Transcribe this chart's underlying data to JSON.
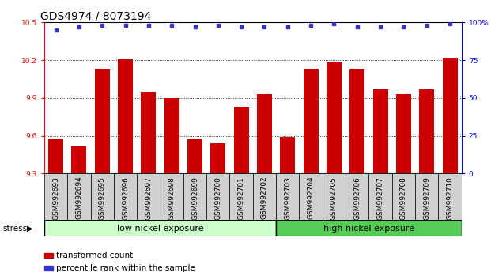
{
  "title": "GDS4974 / 8073194",
  "samples": [
    "GSM992693",
    "GSM992694",
    "GSM992695",
    "GSM992696",
    "GSM992697",
    "GSM992698",
    "GSM992699",
    "GSM992700",
    "GSM992701",
    "GSM992702",
    "GSM992703",
    "GSM992704",
    "GSM992705",
    "GSM992706",
    "GSM992707",
    "GSM992708",
    "GSM992709",
    "GSM992710"
  ],
  "bar_values": [
    9.57,
    9.52,
    10.13,
    10.21,
    9.95,
    9.9,
    9.57,
    9.54,
    9.83,
    9.93,
    9.59,
    10.13,
    10.18,
    10.13,
    9.97,
    9.93,
    9.97,
    10.22
  ],
  "percentile_values": [
    95,
    97,
    98,
    98,
    98,
    98,
    97,
    98,
    97,
    97,
    97,
    98,
    99,
    97,
    97,
    97,
    98,
    99
  ],
  "bar_color": "#cc0000",
  "dot_color": "#3333cc",
  "ylim_left": [
    9.3,
    10.5
  ],
  "ylim_right": [
    0,
    100
  ],
  "yticks_left": [
    9.3,
    9.6,
    9.9,
    10.2,
    10.5
  ],
  "yticks_right": [
    0,
    25,
    50,
    75,
    100
  ],
  "grid_vals": [
    9.6,
    9.9,
    10.2
  ],
  "low_nickel_count": 10,
  "high_nickel_count": 8,
  "low_label": "low nickel exposure",
  "high_label": "high nickel exposure",
  "stress_label": "stress",
  "legend_bar_label": "transformed count",
  "legend_dot_label": "percentile rank within the sample",
  "low_color": "#ccffcc",
  "high_color": "#55cc55",
  "title_fontsize": 10,
  "tick_fontsize": 6.5,
  "group_fontsize": 8
}
